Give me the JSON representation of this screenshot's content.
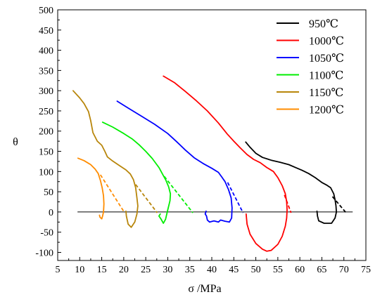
{
  "chart_data": {
    "type": "line",
    "xlabel": "σ /MPa",
    "ylabel": "θ",
    "xlim": [
      5,
      75
    ],
    "ylim": [
      -120,
      500
    ],
    "x_ticks": [
      5,
      10,
      15,
      20,
      25,
      30,
      35,
      40,
      45,
      50,
      55,
      60,
      65,
      70,
      75
    ],
    "y_ticks": [
      -100,
      -50,
      0,
      50,
      100,
      150,
      200,
      250,
      300,
      350,
      400,
      450,
      500
    ],
    "grid": false,
    "legend_position": "top-right",
    "reference_line": {
      "y": 0,
      "x_from": 9.5,
      "x_to": 72,
      "color": "#000000"
    },
    "series": [
      {
        "name": "950℃",
        "color": "#000000",
        "points": [
          [
            47.7,
            173
          ],
          [
            48.7,
            160
          ],
          [
            50.0,
            145
          ],
          [
            51.5,
            135
          ],
          [
            53.5,
            128
          ],
          [
            55.5,
            123
          ],
          [
            57.5,
            117
          ],
          [
            59.0,
            110
          ],
          [
            60.5,
            103
          ],
          [
            62.0,
            95
          ],
          [
            63.5,
            85
          ],
          [
            65.0,
            73
          ],
          [
            66.0,
            67
          ],
          [
            67.0,
            60
          ],
          [
            67.7,
            45
          ],
          [
            68.0,
            30
          ],
          [
            68.2,
            15
          ],
          [
            68.3,
            0
          ],
          [
            68.0,
            -15
          ],
          [
            67.2,
            -28
          ],
          [
            65.5,
            -28
          ],
          [
            64.3,
            -22
          ],
          [
            64.0,
            -10
          ],
          [
            63.9,
            2
          ]
        ],
        "extrapolation": [
          [
            67.4,
            38
          ],
          [
            70.5,
            -2
          ]
        ]
      },
      {
        "name": "1000℃",
        "color": "#ff0000",
        "points": [
          [
            29.0,
            336
          ],
          [
            31.5,
            320
          ],
          [
            34.0,
            298
          ],
          [
            36.5,
            275
          ],
          [
            39.0,
            250
          ],
          [
            41.5,
            220
          ],
          [
            43.5,
            193
          ],
          [
            45.0,
            175
          ],
          [
            46.5,
            158
          ],
          [
            48.0,
            142
          ],
          [
            49.5,
            130
          ],
          [
            51.0,
            122
          ],
          [
            52.5,
            110
          ],
          [
            54.0,
            100
          ],
          [
            55.0,
            85
          ],
          [
            56.0,
            65
          ],
          [
            56.7,
            45
          ],
          [
            57.0,
            25
          ],
          [
            57.1,
            5
          ],
          [
            57.0,
            -15
          ],
          [
            56.7,
            -35
          ],
          [
            56.0,
            -60
          ],
          [
            55.0,
            -80
          ],
          [
            53.5,
            -95
          ],
          [
            52.5,
            -97
          ],
          [
            51.5,
            -92
          ],
          [
            50.0,
            -78
          ],
          [
            48.7,
            -55
          ],
          [
            48.0,
            -30
          ],
          [
            47.8,
            -5
          ]
        ],
        "extrapolation": [
          [
            56.5,
            42
          ],
          [
            58.0,
            -2
          ]
        ]
      },
      {
        "name": "1050℃",
        "color": "#0000ff",
        "points": [
          [
            18.5,
            274
          ],
          [
            21.0,
            257
          ],
          [
            24.0,
            237
          ],
          [
            27.0,
            217
          ],
          [
            30.0,
            194
          ],
          [
            32.0,
            174
          ],
          [
            34.0,
            153
          ],
          [
            36.0,
            134
          ],
          [
            38.0,
            120
          ],
          [
            40.0,
            108
          ],
          [
            41.5,
            98
          ],
          [
            42.3,
            86
          ],
          [
            43.0,
            75
          ],
          [
            43.8,
            55
          ],
          [
            44.4,
            35
          ],
          [
            44.6,
            10
          ],
          [
            44.5,
            -15
          ],
          [
            44.0,
            -25
          ],
          [
            43.0,
            -23
          ],
          [
            42.0,
            -20
          ],
          [
            41.5,
            -25
          ],
          [
            40.5,
            -22
          ],
          [
            39.5,
            -25
          ],
          [
            39.0,
            -20
          ],
          [
            38.8,
            -10
          ],
          [
            38.5,
            -5
          ],
          [
            38.7,
            2
          ]
        ],
        "extrapolation": [
          [
            43.6,
            73
          ],
          [
            47.1,
            -2
          ]
        ]
      },
      {
        "name": "1100℃",
        "color": "#00ee00",
        "points": [
          [
            15.2,
            222
          ],
          [
            17.5,
            210
          ],
          [
            20.0,
            194
          ],
          [
            22.0,
            180
          ],
          [
            23.5,
            166
          ],
          [
            25.0,
            150
          ],
          [
            26.5,
            132
          ],
          [
            28.0,
            110
          ],
          [
            28.9,
            92
          ],
          [
            29.6,
            78
          ],
          [
            30.2,
            62
          ],
          [
            30.6,
            45
          ],
          [
            30.5,
            28
          ],
          [
            30.0,
            5
          ],
          [
            29.5,
            -18
          ],
          [
            29.0,
            -28
          ],
          [
            28.5,
            -18
          ],
          [
            28.0,
            -10
          ],
          [
            28.3,
            -5
          ]
        ],
        "extrapolation": [
          [
            29.2,
            88
          ],
          [
            35.7,
            -2
          ]
        ]
      },
      {
        "name": "1150℃",
        "color": "#b8860b",
        "points": [
          [
            8.5,
            300
          ],
          [
            10.0,
            282
          ],
          [
            11.0,
            268
          ],
          [
            12.0,
            248
          ],
          [
            12.5,
            226
          ],
          [
            13.0,
            196
          ],
          [
            14.0,
            175
          ],
          [
            15.0,
            165
          ],
          [
            15.7,
            150
          ],
          [
            16.3,
            136
          ],
          [
            17.5,
            126
          ],
          [
            19.0,
            115
          ],
          [
            20.5,
            104
          ],
          [
            21.5,
            94
          ],
          [
            22.2,
            80
          ],
          [
            22.7,
            60
          ],
          [
            23.0,
            35
          ],
          [
            23.2,
            15
          ],
          [
            23.0,
            -5
          ],
          [
            22.5,
            -25
          ],
          [
            21.7,
            -38
          ],
          [
            21.0,
            -30
          ],
          [
            20.6,
            -10
          ],
          [
            20.5,
            2
          ]
        ],
        "extrapolation": [
          [
            22.7,
            68
          ],
          [
            27.6,
            -2
          ]
        ]
      },
      {
        "name": "1200℃",
        "color": "#ff8c00",
        "points": [
          [
            9.6,
            133
          ],
          [
            11.0,
            127
          ],
          [
            12.5,
            117
          ],
          [
            13.5,
            106
          ],
          [
            14.2,
            95
          ],
          [
            14.7,
            78
          ],
          [
            15.1,
            60
          ],
          [
            15.4,
            40
          ],
          [
            15.5,
            20
          ],
          [
            15.4,
            0
          ],
          [
            15.2,
            -10
          ],
          [
            15.0,
            -17
          ],
          [
            14.6,
            -13
          ],
          [
            14.5,
            -8
          ]
        ],
        "extrapolation": [
          [
            14.7,
            92
          ],
          [
            20.2,
            -2
          ]
        ]
      }
    ]
  }
}
